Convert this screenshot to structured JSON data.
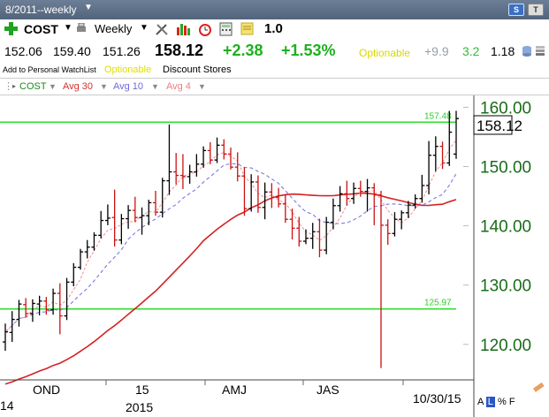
{
  "window": {
    "title": "8/2011--weekly",
    "s_button": "S",
    "t_button": "T"
  },
  "toolbar": {
    "symbol": "COST",
    "period": "Weekly",
    "value": "1.0"
  },
  "quote": {
    "open": "152.06",
    "high": "159.40",
    "low": "151.26",
    "last": "158.12",
    "change": "+2.38",
    "change_pct": "+1.53%",
    "optionable": "Optionable",
    "metric1": "+9.9",
    "metric2": "3.2",
    "metric3": "1.18"
  },
  "info": {
    "watchlist_link": "Add to Personal WatchList",
    "optionable": "Optionable",
    "industry": "Discount Stores"
  },
  "indicators": [
    {
      "label": "COST",
      "color": "#1a8a1a"
    },
    {
      "label": "Avg 30",
      "color": "#d23030"
    },
    {
      "label": "Avg 10",
      "color": "#6b6bd6"
    },
    {
      "label": "Avg 4",
      "color": "#e88080"
    }
  ],
  "colors": {
    "up": "#000000",
    "down": "#cc1111",
    "level_line": "#33dd33",
    "price_label": "#1a6b1a"
  },
  "chart_data": {
    "type": "candlestick",
    "y_axis": {
      "min": 114,
      "max": 162,
      "ticks": [
        120,
        130,
        140,
        150,
        160
      ],
      "tick_labels": [
        "120.00",
        "130.00",
        "140.00",
        "150.00",
        "160.00"
      ]
    },
    "x_labels": [
      "14",
      "OND",
      "15",
      "2015",
      "AMJ",
      "JAS",
      "10/30/15"
    ],
    "current_price": "158.12",
    "levels": [
      {
        "value": 157.48,
        "label": "157.48"
      },
      {
        "value": 125.97,
        "label": "125.97"
      }
    ],
    "bars": [
      {
        "o": 120.4,
        "h": 123.5,
        "l": 118.9,
        "c": 122.1
      },
      {
        "o": 122.0,
        "h": 125.6,
        "l": 120.4,
        "c": 124.2
      },
      {
        "o": 124.2,
        "h": 127.5,
        "l": 123.0,
        "c": 126.8
      },
      {
        "o": 126.7,
        "h": 127.8,
        "l": 124.6,
        "c": 125.2
      },
      {
        "o": 125.2,
        "h": 127.6,
        "l": 123.8,
        "c": 126.9
      },
      {
        "o": 126.8,
        "h": 128.2,
        "l": 124.9,
        "c": 127.3
      },
      {
        "o": 127.3,
        "h": 128.0,
        "l": 125.0,
        "c": 125.8
      },
      {
        "o": 125.8,
        "h": 129.4,
        "l": 125.0,
        "c": 128.6
      },
      {
        "o": 128.6,
        "h": 130.3,
        "l": 121.7,
        "c": 124.8
      },
      {
        "o": 124.8,
        "h": 131.2,
        "l": 124.1,
        "c": 130.5
      },
      {
        "o": 130.5,
        "h": 133.7,
        "l": 129.8,
        "c": 133.0
      },
      {
        "o": 133.0,
        "h": 136.1,
        "l": 132.6,
        "c": 135.6
      },
      {
        "o": 135.6,
        "h": 137.6,
        "l": 134.5,
        "c": 136.4
      },
      {
        "o": 136.4,
        "h": 138.9,
        "l": 135.8,
        "c": 138.4
      },
      {
        "o": 138.4,
        "h": 142.5,
        "l": 137.9,
        "c": 140.9
      },
      {
        "o": 140.9,
        "h": 143.6,
        "l": 140.1,
        "c": 141.3
      },
      {
        "o": 141.4,
        "h": 146.1,
        "l": 136.5,
        "c": 137.6
      },
      {
        "o": 137.6,
        "h": 142.0,
        "l": 136.9,
        "c": 141.2
      },
      {
        "o": 141.2,
        "h": 143.5,
        "l": 139.5,
        "c": 142.6
      },
      {
        "o": 142.6,
        "h": 144.9,
        "l": 140.6,
        "c": 141.4
      },
      {
        "o": 141.4,
        "h": 143.1,
        "l": 138.5,
        "c": 141.7
      },
      {
        "o": 141.7,
        "h": 144.4,
        "l": 140.1,
        "c": 143.9
      },
      {
        "o": 143.9,
        "h": 145.9,
        "l": 141.7,
        "c": 142.3
      },
      {
        "o": 142.3,
        "h": 148.1,
        "l": 141.4,
        "c": 147.6
      },
      {
        "o": 147.6,
        "h": 157.1,
        "l": 145.2,
        "c": 149.1
      },
      {
        "o": 149.1,
        "h": 152.3,
        "l": 147.0,
        "c": 148.5
      },
      {
        "o": 148.5,
        "h": 152.1,
        "l": 146.2,
        "c": 148.3
      },
      {
        "o": 148.3,
        "h": 150.3,
        "l": 147.1,
        "c": 149.1
      },
      {
        "o": 149.1,
        "h": 152.1,
        "l": 148.3,
        "c": 150.4
      },
      {
        "o": 150.4,
        "h": 153.4,
        "l": 149.8,
        "c": 152.7
      },
      {
        "o": 152.7,
        "h": 154.1,
        "l": 150.4,
        "c": 151.1
      },
      {
        "o": 151.1,
        "h": 154.9,
        "l": 150.6,
        "c": 153.6
      },
      {
        "o": 153.6,
        "h": 154.6,
        "l": 151.2,
        "c": 152.1
      },
      {
        "o": 152.1,
        "h": 153.2,
        "l": 149.5,
        "c": 149.9
      },
      {
        "o": 149.9,
        "h": 152.4,
        "l": 147.5,
        "c": 148.4
      },
      {
        "o": 148.4,
        "h": 149.9,
        "l": 141.7,
        "c": 142.9
      },
      {
        "o": 142.9,
        "h": 148.7,
        "l": 142.4,
        "c": 147.4
      },
      {
        "o": 147.4,
        "h": 148.5,
        "l": 142.2,
        "c": 143.1
      },
      {
        "o": 143.1,
        "h": 147.3,
        "l": 141.1,
        "c": 145.7
      },
      {
        "o": 145.7,
        "h": 147.2,
        "l": 143.0,
        "c": 144.8
      },
      {
        "o": 144.8,
        "h": 146.4,
        "l": 143.1,
        "c": 143.7
      },
      {
        "o": 143.7,
        "h": 145.3,
        "l": 140.5,
        "c": 141.1
      },
      {
        "o": 141.1,
        "h": 142.9,
        "l": 137.7,
        "c": 139.6
      },
      {
        "o": 139.6,
        "h": 141.5,
        "l": 136.5,
        "c": 137.4
      },
      {
        "o": 137.4,
        "h": 139.4,
        "l": 136.9,
        "c": 137.9
      },
      {
        "o": 137.9,
        "h": 140.5,
        "l": 136.1,
        "c": 139.0
      },
      {
        "o": 139.0,
        "h": 141.2,
        "l": 134.7,
        "c": 135.9
      },
      {
        "o": 135.9,
        "h": 141.5,
        "l": 135.2,
        "c": 140.6
      },
      {
        "o": 140.6,
        "h": 144.6,
        "l": 139.4,
        "c": 143.4
      },
      {
        "o": 143.4,
        "h": 146.7,
        "l": 142.4,
        "c": 145.4
      },
      {
        "o": 145.4,
        "h": 147.6,
        "l": 143.4,
        "c": 144.6
      },
      {
        "o": 144.6,
        "h": 147.3,
        "l": 143.7,
        "c": 146.3
      },
      {
        "o": 146.3,
        "h": 147.6,
        "l": 144.9,
        "c": 145.8
      },
      {
        "o": 145.8,
        "h": 147.9,
        "l": 142.4,
        "c": 146.4
      },
      {
        "o": 146.4,
        "h": 147.2,
        "l": 140.1,
        "c": 145.2
      },
      {
        "o": 145.2,
        "h": 145.9,
        "l": 116.0,
        "c": 140.1
      },
      {
        "o": 140.1,
        "h": 141.1,
        "l": 136.8,
        "c": 138.7
      },
      {
        "o": 138.7,
        "h": 142.3,
        "l": 138.2,
        "c": 141.1
      },
      {
        "o": 141.1,
        "h": 142.6,
        "l": 139.4,
        "c": 142.2
      },
      {
        "o": 142.2,
        "h": 144.2,
        "l": 141.3,
        "c": 143.5
      },
      {
        "o": 143.5,
        "h": 145.3,
        "l": 142.9,
        "c": 144.6
      },
      {
        "o": 144.6,
        "h": 148.6,
        "l": 143.9,
        "c": 146.8
      },
      {
        "o": 146.8,
        "h": 154.3,
        "l": 145.3,
        "c": 151.9
      },
      {
        "o": 151.9,
        "h": 155.1,
        "l": 149.2,
        "c": 153.4
      },
      {
        "o": 153.4,
        "h": 154.2,
        "l": 149.6,
        "c": 150.6
      },
      {
        "o": 150.6,
        "h": 159.4,
        "l": 150.1,
        "c": 155.8
      },
      {
        "o": 152.1,
        "h": 159.4,
        "l": 151.3,
        "c": 158.1
      }
    ]
  }
}
